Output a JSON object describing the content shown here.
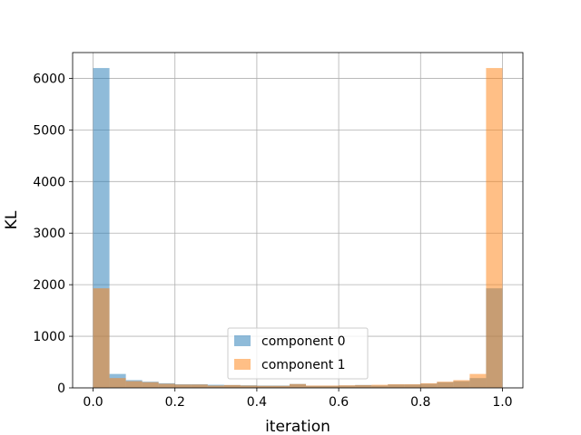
{
  "chart_data": {
    "type": "bar",
    "subtype": "overlapping-histogram",
    "title": "",
    "xlabel": "iteration",
    "ylabel": "KL",
    "xlim": [
      -0.05,
      1.05
    ],
    "ylim": [
      0,
      6500
    ],
    "grid": true,
    "legend_position": "bottom-center",
    "x_ticks": [
      "0.0",
      "0.2",
      "0.4",
      "0.6",
      "0.8",
      "1.0"
    ],
    "y_ticks": [
      "0",
      "1000",
      "2000",
      "3000",
      "4000",
      "5000",
      "6000"
    ],
    "bin_edges": [
      0.0,
      0.04,
      0.08,
      0.12,
      0.16,
      0.2,
      0.24,
      0.28,
      0.32,
      0.36,
      0.4,
      0.44,
      0.48,
      0.52,
      0.56,
      0.6,
      0.64,
      0.68,
      0.72,
      0.76,
      0.8,
      0.84,
      0.88,
      0.92,
      0.96,
      1.0
    ],
    "series": [
      {
        "name": "component 0",
        "color": "#1f77b4",
        "opacity": 0.5,
        "values": [
          6200,
          270,
          150,
          120,
          90,
          70,
          70,
          60,
          55,
          50,
          45,
          45,
          75,
          40,
          40,
          45,
          55,
          45,
          65,
          65,
          80,
          110,
          130,
          190,
          1930
        ]
      },
      {
        "name": "component 1",
        "color": "#ff7f0e",
        "opacity": 0.5,
        "values": [
          1930,
          190,
          130,
          110,
          80,
          65,
          65,
          45,
          55,
          45,
          40,
          40,
          75,
          45,
          45,
          50,
          55,
          60,
          70,
          70,
          90,
          120,
          150,
          270,
          6200
        ]
      }
    ]
  }
}
